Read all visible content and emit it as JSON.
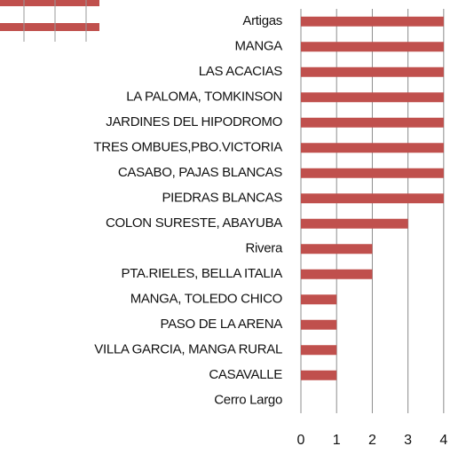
{
  "chart_data": {
    "type": "barh",
    "categories": [
      "Artigas",
      "MANGA",
      "LAS ACACIAS",
      "LA PALOMA, TOMKINSON",
      "JARDINES DEL HIPODROMO",
      "TRES OMBUES,PBO.VICTORIA",
      "CASABO, PAJAS BLANCAS",
      "PIEDRAS BLANCAS",
      "COLON SURESTE, ABAYUBA",
      "Rivera",
      "PTA.RIELES, BELLA ITALIA",
      "MANGA, TOLEDO CHICO",
      "PASO DE LA ARENA",
      "VILLA GARCIA, MANGA RURAL",
      "CASAVALLE",
      "Cerro Largo"
    ],
    "values": [
      4,
      4,
      4,
      4,
      4,
      4,
      4,
      4,
      3,
      2,
      2,
      1,
      1,
      1,
      1,
      0
    ],
    "color": "#c0504d",
    "xlim": [
      0,
      4.8
    ],
    "xticks": [
      0,
      1,
      2,
      3,
      4
    ],
    "grid": true
  }
}
